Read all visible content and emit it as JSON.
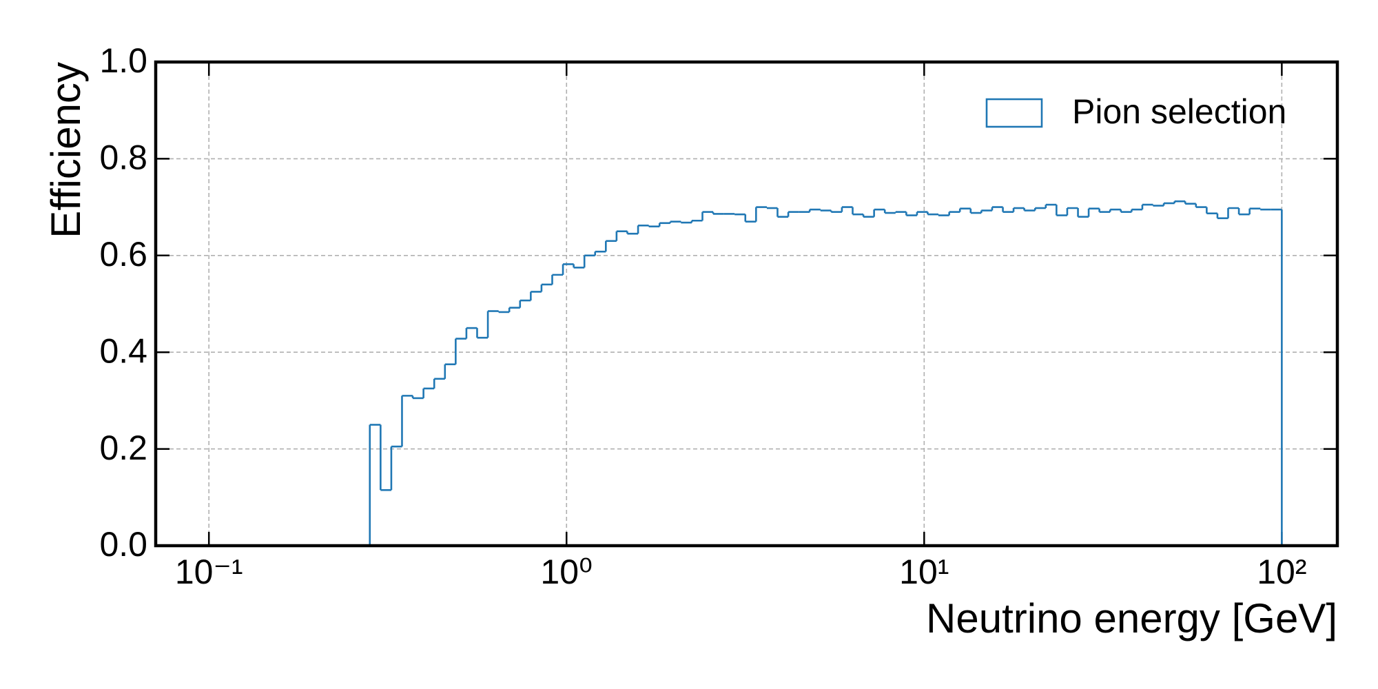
{
  "chart_data": {
    "type": "histogram",
    "x_label": "Neutrino energy [GeV]",
    "y_label": "Efficiency",
    "xscale": "log",
    "xlim": [
      0.071,
      143
    ],
    "ylim": [
      0,
      1
    ],
    "xticks": [
      {
        "value": 0.1,
        "label": "10⁻¹"
      },
      {
        "value": 1,
        "label": "10⁰"
      },
      {
        "value": 10,
        "label": "10¹"
      },
      {
        "value": 100,
        "label": "10²"
      }
    ],
    "yticks": [
      {
        "value": 0,
        "label": "0.0"
      },
      0.2,
      0.4,
      0.6,
      0.8,
      {
        "value": 1,
        "label": "1.0"
      }
    ],
    "grid": true,
    "legend": "upper right",
    "histtype": "step",
    "bins": [
      0.2818,
      0.302,
      0.3236,
      0.3467,
      0.3715,
      0.3981,
      0.4266,
      0.4571,
      0.4898,
      0.5248,
      0.5623,
      0.6026,
      0.6457,
      0.6918,
      0.7413,
      0.7943,
      0.8511,
      0.912,
      0.9772,
      1.047,
      1.122,
      1.202,
      1.288,
      1.38,
      1.479,
      1.585,
      1.698,
      1.82,
      1.95,
      2.089,
      2.239,
      2.399,
      2.57,
      2.754,
      2.951,
      3.162,
      3.388,
      3.631,
      3.89,
      4.169,
      4.467,
      4.786,
      5.129,
      5.495,
      5.888,
      6.31,
      6.761,
      7.244,
      7.762,
      8.318,
      8.913,
      9.55,
      10.23,
      10.96,
      11.75,
      12.59,
      13.49,
      14.45,
      15.49,
      16.6,
      17.78,
      19.05,
      20.42,
      21.88,
      23.44,
      25.12,
      26.92,
      28.84,
      30.9,
      33.11,
      35.48,
      38.02,
      40.74,
      43.65,
      46.77,
      50.12,
      53.7,
      57.54,
      61.66,
      66.07,
      70.79,
      75.86,
      81.28,
      87.1,
      93.33,
      100
    ],
    "series": [
      {
        "name": "Pion selection",
        "color": "#1f77b4",
        "values": [
          0.25,
          0.115,
          0.205,
          0.31,
          0.305,
          0.325,
          0.345,
          0.375,
          0.428,
          0.45,
          0.43,
          0.485,
          0.483,
          0.492,
          0.507,
          0.525,
          0.54,
          0.56,
          0.582,
          0.575,
          0.6,
          0.608,
          0.63,
          0.65,
          0.645,
          0.662,
          0.66,
          0.667,
          0.67,
          0.668,
          0.672,
          0.69,
          0.686,
          0.686,
          0.685,
          0.67,
          0.7,
          0.698,
          0.68,
          0.69,
          0.69,
          0.695,
          0.693,
          0.69,
          0.7,
          0.685,
          0.68,
          0.695,
          0.688,
          0.69,
          0.683,
          0.69,
          0.685,
          0.683,
          0.69,
          0.697,
          0.688,
          0.693,
          0.7,
          0.69,
          0.698,
          0.693,
          0.698,
          0.705,
          0.683,
          0.698,
          0.68,
          0.697,
          0.69,
          0.695,
          0.69,
          0.695,
          0.705,
          0.703,
          0.708,
          0.712,
          0.707,
          0.7,
          0.687,
          0.677,
          0.698,
          0.685,
          0.697,
          0.695,
          0.695
        ]
      }
    ]
  }
}
